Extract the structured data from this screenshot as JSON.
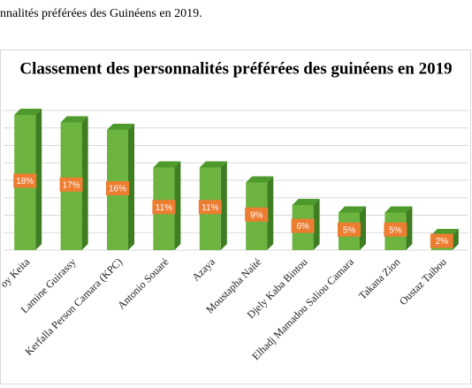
{
  "caption": "nnalités préférées des Guinéens en 2019.",
  "chart_data": {
    "type": "bar",
    "title": "Classement des personnalités préférées des guinéens en 2019",
    "categories": [
      "oy Keita",
      "Lamine Guirassy",
      "Kerfalla Person Camara (KPC)",
      "Antonio Souaré",
      "Azaya",
      "Moustapha Naité",
      "Djely Kaba Bintou",
      "Elhadj Mamadou Saliou Camara",
      "Takana Zion",
      "Oustaz Taibou"
    ],
    "values": [
      18,
      17,
      16,
      11,
      11,
      9,
      6,
      5,
      5,
      2
    ],
    "value_labels": [
      "18%",
      "17%",
      "16%",
      "11%",
      "11%",
      "9%",
      "6%",
      "5%",
      "5%",
      "2%"
    ],
    "color": "#6db33f",
    "label_color": "#ed7d31",
    "ylim": [
      0,
      20
    ]
  }
}
